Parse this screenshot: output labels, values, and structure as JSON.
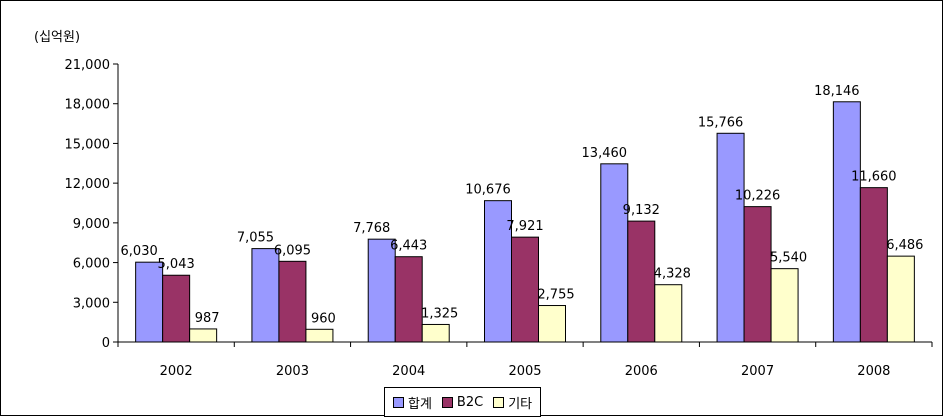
{
  "chart_data": {
    "type": "bar",
    "unit_label": "(십억원)",
    "categories": [
      "2002",
      "2003",
      "2004",
      "2005",
      "2006",
      "2007",
      "2008"
    ],
    "series": [
      {
        "name": "합계",
        "color": "#9999ff",
        "values": [
          6030,
          7055,
          7768,
          10676,
          13460,
          15766,
          18146
        ],
        "labels": [
          "6,030",
          "7,055",
          "7,768",
          "10,676",
          "13,460",
          "15,766",
          "18,146"
        ]
      },
      {
        "name": "B2C",
        "color": "#993366",
        "values": [
          5043,
          6095,
          6443,
          7921,
          9132,
          10226,
          11660
        ],
        "labels": [
          "5,043",
          "6,095",
          "6,443",
          "7,921",
          "9,132",
          "10,226",
          "11,660"
        ]
      },
      {
        "name": "기타",
        "color": "#ffffcc",
        "values": [
          987,
          960,
          1325,
          2755,
          4328,
          5540,
          6486
        ],
        "labels": [
          "987",
          "960",
          "1,325",
          "2,755",
          "4,328",
          "5,540",
          "6,486"
        ]
      }
    ],
    "yticks": [
      0,
      3000,
      6000,
      9000,
      12000,
      15000,
      18000,
      21000
    ],
    "ytick_labels": [
      "0",
      "3,000",
      "6,000",
      "9,000",
      "12,000",
      "15,000",
      "18,000",
      "21,000"
    ],
    "ylim": [
      0,
      21000
    ],
    "grid": false,
    "legend_position": "bottom-center"
  }
}
